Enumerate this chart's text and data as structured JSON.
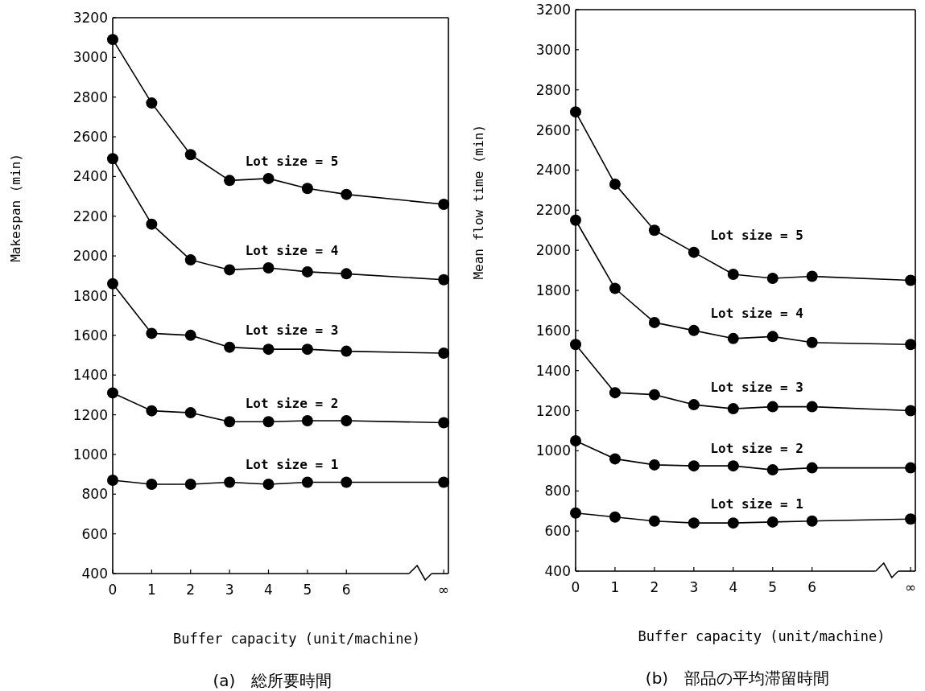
{
  "chart_data": [
    {
      "type": "line",
      "title": "(a)　総所要時間",
      "xlabel": "Buffer capacity  (unit/machine)",
      "ylabel": "Makespan  (min)",
      "categories": [
        "0",
        "1",
        "2",
        "3",
        "4",
        "5",
        "6",
        "∞"
      ],
      "ylim": [
        400,
        3200
      ],
      "yticks": [
        400,
        600,
        800,
        1000,
        1200,
        1400,
        1600,
        1800,
        2000,
        2200,
        2400,
        2600,
        2800,
        3000,
        3200
      ],
      "marker": "circle",
      "grid": false,
      "series": [
        {
          "name": "Lot size = 5",
          "color": "#000000",
          "values": [
            3090,
            2770,
            2510,
            2380,
            2390,
            2340,
            2310,
            2260
          ]
        },
        {
          "name": "Lot size = 4",
          "color": "#000000",
          "values": [
            2490,
            2160,
            1980,
            1930,
            1940,
            1920,
            1910,
            1880
          ]
        },
        {
          "name": "Lot size = 3",
          "color": "#000000",
          "values": [
            1860,
            1610,
            1600,
            1540,
            1530,
            1530,
            1520,
            1510
          ]
        },
        {
          "name": "Lot size = 2",
          "color": "#000000",
          "values": [
            1310,
            1220,
            1210,
            1165,
            1165,
            1170,
            1170,
            1160
          ]
        },
        {
          "name": "Lot size = 1",
          "color": "#000000",
          "values": [
            870,
            850,
            850,
            860,
            850,
            860,
            860,
            860
          ]
        }
      ]
    },
    {
      "type": "line",
      "title": "(b)　部品の平均滞留時間",
      "xlabel": "Buffer capacity  (unit/machine)",
      "ylabel": "Mean flow time  (min)",
      "categories": [
        "0",
        "1",
        "2",
        "3",
        "4",
        "5",
        "6",
        "∞"
      ],
      "ylim": [
        400,
        3200
      ],
      "yticks": [
        400,
        600,
        800,
        1000,
        1200,
        1400,
        1600,
        1800,
        2000,
        2200,
        2400,
        2600,
        2800,
        3000,
        3200
      ],
      "marker": "circle",
      "grid": false,
      "series": [
        {
          "name": "Lot size = 5",
          "color": "#000000",
          "values": [
            2690,
            2330,
            2100,
            1990,
            1880,
            1860,
            1870,
            1850
          ]
        },
        {
          "name": "Lot size = 4",
          "color": "#000000",
          "values": [
            2150,
            1810,
            1640,
            1600,
            1560,
            1570,
            1540,
            1530
          ]
        },
        {
          "name": "Lot size = 3",
          "color": "#000000",
          "values": [
            1530,
            1290,
            1280,
            1230,
            1210,
            1220,
            1220,
            1200
          ]
        },
        {
          "name": "Lot size = 2",
          "color": "#000000",
          "values": [
            1050,
            960,
            930,
            925,
            925,
            905,
            915,
            915
          ]
        },
        {
          "name": "Lot size = 1",
          "color": "#000000",
          "values": [
            690,
            670,
            650,
            640,
            640,
            645,
            650,
            660
          ]
        }
      ]
    }
  ]
}
